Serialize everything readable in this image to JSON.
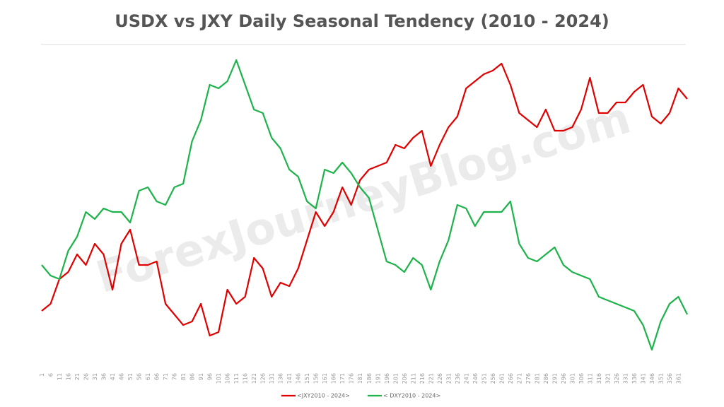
{
  "chart_data": {
    "type": "line",
    "title": "USDX vs JXY Daily Seasonal Tendency (2010 - 2024)",
    "watermark": "ForexJourneyBlog.com",
    "x": [
      1,
      6,
      11,
      16,
      21,
      26,
      31,
      36,
      41,
      46,
      51,
      56,
      61,
      66,
      71,
      76,
      81,
      86,
      91,
      96,
      101,
      106,
      111,
      116,
      121,
      126,
      131,
      136,
      141,
      146,
      151,
      156,
      161,
      166,
      171,
      176,
      181,
      186,
      191,
      196,
      201,
      206,
      211,
      216,
      221,
      226,
      231,
      236,
      241,
      246,
      251,
      256,
      261,
      266,
      271,
      276,
      281,
      286,
      291,
      296,
      301,
      306,
      311,
      316,
      321,
      326,
      331,
      336,
      341,
      346,
      351,
      356,
      361,
      366
    ],
    "xlim": [
      1,
      366
    ],
    "xticks": [
      1,
      6,
      11,
      16,
      21,
      26,
      31,
      36,
      41,
      46,
      51,
      56,
      61,
      66,
      71,
      76,
      81,
      86,
      91,
      96,
      101,
      106,
      111,
      116,
      121,
      126,
      131,
      136,
      141,
      146,
      151,
      156,
      161,
      166,
      171,
      176,
      181,
      186,
      191,
      196,
      201,
      206,
      211,
      216,
      221,
      226,
      231,
      236,
      241,
      246,
      251,
      256,
      261,
      266,
      271,
      276,
      281,
      286,
      291,
      296,
      301,
      306,
      311,
      316,
      321,
      326,
      331,
      336,
      341,
      346,
      351,
      356,
      361
    ],
    "ylim": [
      0,
      450
    ],
    "legend": "bottom",
    "series": [
      {
        "name": "<JXY2010 - 2024>",
        "color": "#e00000",
        "values": [
          80,
          90,
          125,
          135,
          160,
          145,
          175,
          160,
          110,
          175,
          195,
          145,
          145,
          150,
          90,
          75,
          60,
          65,
          90,
          45,
          50,
          110,
          90,
          100,
          155,
          140,
          100,
          120,
          115,
          140,
          180,
          220,
          200,
          220,
          255,
          230,
          265,
          280,
          285,
          290,
          315,
          310,
          325,
          335,
          285,
          315,
          340,
          355,
          395,
          405,
          415,
          420,
          430,
          400,
          360,
          350,
          340,
          365,
          335,
          335,
          340,
          365,
          410,
          360,
          360,
          375,
          375,
          390,
          400,
          355,
          345,
          360,
          395,
          380
        ]
      },
      {
        "name": "< DXY2010 - 2024>",
        "color": "#1db34a",
        "values": [
          145,
          130,
          125,
          165,
          185,
          220,
          210,
          225,
          220,
          220,
          205,
          250,
          255,
          235,
          230,
          255,
          260,
          320,
          350,
          400,
          395,
          405,
          435,
          400,
          365,
          360,
          325,
          310,
          280,
          270,
          235,
          225,
          280,
          275,
          290,
          275,
          255,
          240,
          195,
          150,
          145,
          135,
          155,
          145,
          110,
          150,
          180,
          230,
          225,
          200,
          220,
          220,
          220,
          235,
          175,
          155,
          150,
          160,
          170,
          145,
          135,
          130,
          125,
          100,
          95,
          90,
          85,
          80,
          60,
          25,
          65,
          90,
          100,
          75
        ]
      }
    ]
  }
}
